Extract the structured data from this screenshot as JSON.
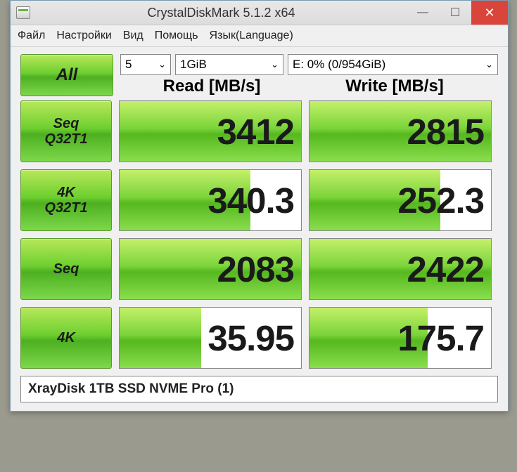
{
  "window": {
    "title": "CrystalDiskMark 5.1.2 x64"
  },
  "menu": {
    "items": [
      "Файл",
      "Настройки",
      "Вид",
      "Помощь",
      "Язык(Language)"
    ]
  },
  "controls": {
    "all_label": "All",
    "count": "5",
    "size": "1GiB",
    "drive": "E: 0% (0/954GiB)"
  },
  "headers": {
    "read": "Read [MB/s]",
    "write": "Write [MB/s]"
  },
  "rows": [
    {
      "label": "Seq\nQ32T1",
      "read": "3412",
      "read_fill": 100,
      "write": "2815",
      "write_fill": 100
    },
    {
      "label": "4K\nQ32T1",
      "read": "340.3",
      "read_fill": 72,
      "write": "252.3",
      "write_fill": 72
    },
    {
      "label": "Seq",
      "read": "2083",
      "read_fill": 100,
      "write": "2422",
      "write_fill": 100
    },
    {
      "label": "4K",
      "read": "35.95",
      "read_fill": 45,
      "write": "175.7",
      "write_fill": 65
    }
  ],
  "footer": {
    "text": "XrayDisk 1TB SSD NVME Pro (1)"
  },
  "colors": {
    "close_btn": "#d9453a",
    "green_grad_top": "#b8e85a",
    "green_grad_bot": "#4db020",
    "window_border": "#7a9ab0"
  }
}
